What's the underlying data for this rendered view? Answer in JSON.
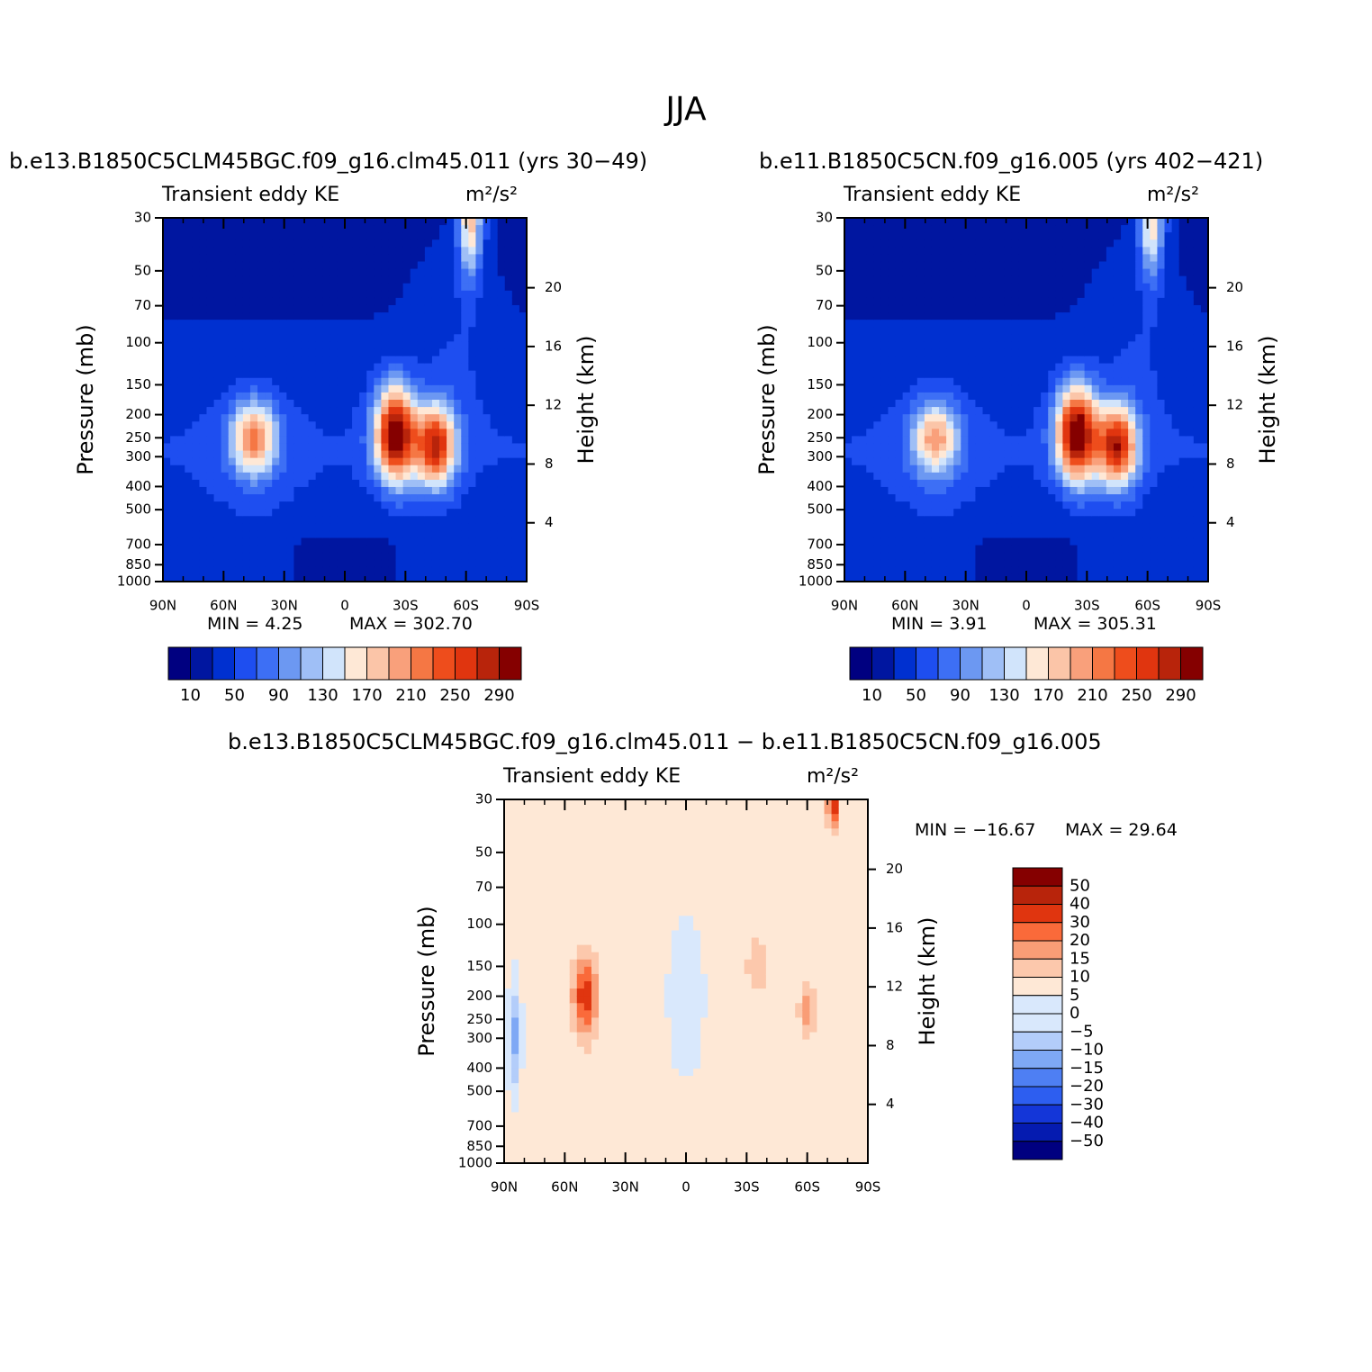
{
  "figure_title": "JJA",
  "chart_data": [
    {
      "type": "heatmap",
      "title": "b.e13.B1850C5CLM45BGC.f09_g16.clm45.011 (yrs 30−49)",
      "left_label": "Transient eddy KE",
      "right_label": "m²/s²",
      "xlabel": "",
      "ylabel": "Pressure (mb)",
      "y2label": "Height (km)",
      "x_ticks": [
        "90N",
        "60N",
        "30N",
        "0",
        "30S",
        "60S",
        "90S"
      ],
      "y_ticks": [
        30,
        50,
        70,
        100,
        150,
        200,
        250,
        300,
        400,
        500,
        700,
        850,
        1000
      ],
      "y_scale": "log",
      "ylim": [
        1000,
        30
      ],
      "y2_ticks": [
        4,
        8,
        12,
        16,
        20
      ],
      "min_text": "MIN =    4.25",
      "max_text": "MAX = 302.70",
      "min": 4.25,
      "max": 302.7,
      "colorbar": {
        "orientation": "horizontal",
        "labels": [
          "10",
          "50",
          "90",
          "130",
          "170",
          "210",
          "250",
          "290"
        ]
      },
      "features": [
        {
          "lat": 45,
          "p": 250,
          "value": 190,
          "lat_sigma": 11,
          "logp_sigma": 0.15
        },
        {
          "lat": -25,
          "p": 240,
          "value": 300,
          "lat_sigma": 10,
          "logp_sigma": 0.2
        },
        {
          "lat": -45,
          "p": 270,
          "value": 260,
          "lat_sigma": 10,
          "logp_sigma": 0.17
        },
        {
          "lat": -62,
          "p": 30,
          "value": 180,
          "lat_sigma": 6,
          "logp_sigma": 0.25
        }
      ]
    },
    {
      "type": "heatmap",
      "title": "b.e11.B1850C5CN.f09_g16.005 (yrs 402−421)",
      "left_label": "Transient eddy KE",
      "right_label": "m²/s²",
      "xlabel": "",
      "ylabel": "Pressure (mb)",
      "y2label": "Height (km)",
      "x_ticks": [
        "90N",
        "60N",
        "30N",
        "0",
        "30S",
        "60S",
        "90S"
      ],
      "y_ticks": [
        30,
        50,
        70,
        100,
        150,
        200,
        250,
        300,
        400,
        500,
        700,
        850,
        1000
      ],
      "y_scale": "log",
      "ylim": [
        1000,
        30
      ],
      "y2_ticks": [
        4,
        8,
        12,
        16,
        20
      ],
      "min_text": "MIN =    3.91",
      "max_text": "MAX = 305.31",
      "min": 3.91,
      "max": 305.31,
      "colorbar": {
        "orientation": "horizontal",
        "labels": [
          "10",
          "50",
          "90",
          "130",
          "170",
          "210",
          "250",
          "290"
        ]
      },
      "features": [
        {
          "lat": 45,
          "p": 250,
          "value": 175,
          "lat_sigma": 11,
          "logp_sigma": 0.15
        },
        {
          "lat": -25,
          "p": 240,
          "value": 305,
          "lat_sigma": 10,
          "logp_sigma": 0.2
        },
        {
          "lat": -45,
          "p": 270,
          "value": 265,
          "lat_sigma": 10,
          "logp_sigma": 0.17
        },
        {
          "lat": -62,
          "p": 30,
          "value": 175,
          "lat_sigma": 6,
          "logp_sigma": 0.25
        }
      ]
    },
    {
      "type": "heatmap",
      "title": "b.e13.B1850C5CLM45BGC.f09_g16.clm45.011 − b.e11.B1850C5CN.f09_g16.005",
      "left_label": "Transient eddy KE",
      "right_label": "m²/s²",
      "xlabel": "",
      "ylabel": "Pressure (mb)",
      "y2label": "Height (km)",
      "x_ticks": [
        "90N",
        "60N",
        "30N",
        "0",
        "30S",
        "60S",
        "90S"
      ],
      "y_ticks": [
        30,
        50,
        70,
        100,
        150,
        200,
        250,
        300,
        400,
        500,
        700,
        850,
        1000
      ],
      "y_scale": "log",
      "ylim": [
        1000,
        30
      ],
      "y2_ticks": [
        4,
        8,
        12,
        16,
        20
      ],
      "min_text": "MIN = −16.67",
      "max_text": "MAX =   29.64",
      "min": -16.67,
      "max": 29.64,
      "colorbar": {
        "orientation": "vertical",
        "labels": [
          "50",
          "40",
          "30",
          "20",
          "15",
          "10",
          "5",
          "0",
          "−5",
          "−10",
          "−15",
          "−20",
          "−30",
          "−40",
          "−50"
        ]
      },
      "features": [
        {
          "lat": 50,
          "p": 200,
          "value": 22,
          "lat_sigma": 6,
          "logp_sigma": 0.17
        },
        {
          "lat": -73,
          "p": 30,
          "value": 26,
          "lat_sigma": 3,
          "logp_sigma": 0.12
        },
        {
          "lat": -60,
          "p": 230,
          "value": 12,
          "lat_sigma": 4,
          "logp_sigma": 0.12
        },
        {
          "lat": -35,
          "p": 150,
          "value": 8,
          "lat_sigma": 5,
          "logp_sigma": 0.12
        },
        {
          "lat": 85,
          "p": 300,
          "value": -13,
          "lat_sigma": 3,
          "logp_sigma": 0.22
        },
        {
          "lat": 0,
          "p": 200,
          "value": -6,
          "lat_sigma": 8,
          "logp_sigma": 0.3
        }
      ]
    }
  ],
  "colors": {
    "kinetic_energy": [
      "#000080",
      "#0016a0",
      "#0030d0",
      "#1e4ef0",
      "#3d6ff5",
      "#6c98f2",
      "#9fbff6",
      "#d1e4fb",
      "#fee8d6",
      "#fbc5a8",
      "#f9a07b",
      "#f57744",
      "#ee4d1c",
      "#e0350f",
      "#b8240b",
      "#850000"
    ],
    "difference": [
      "#850000",
      "#b8240b",
      "#e0350f",
      "#fa6a3a",
      "#f99d76",
      "#fcc8ac",
      "#fee8d6",
      "#d9e8fc",
      "#b3cdfa",
      "#7ea8f5",
      "#4e7ff3",
      "#2d5ef0",
      "#1436d8",
      "#051bb0",
      "#000080"
    ]
  }
}
